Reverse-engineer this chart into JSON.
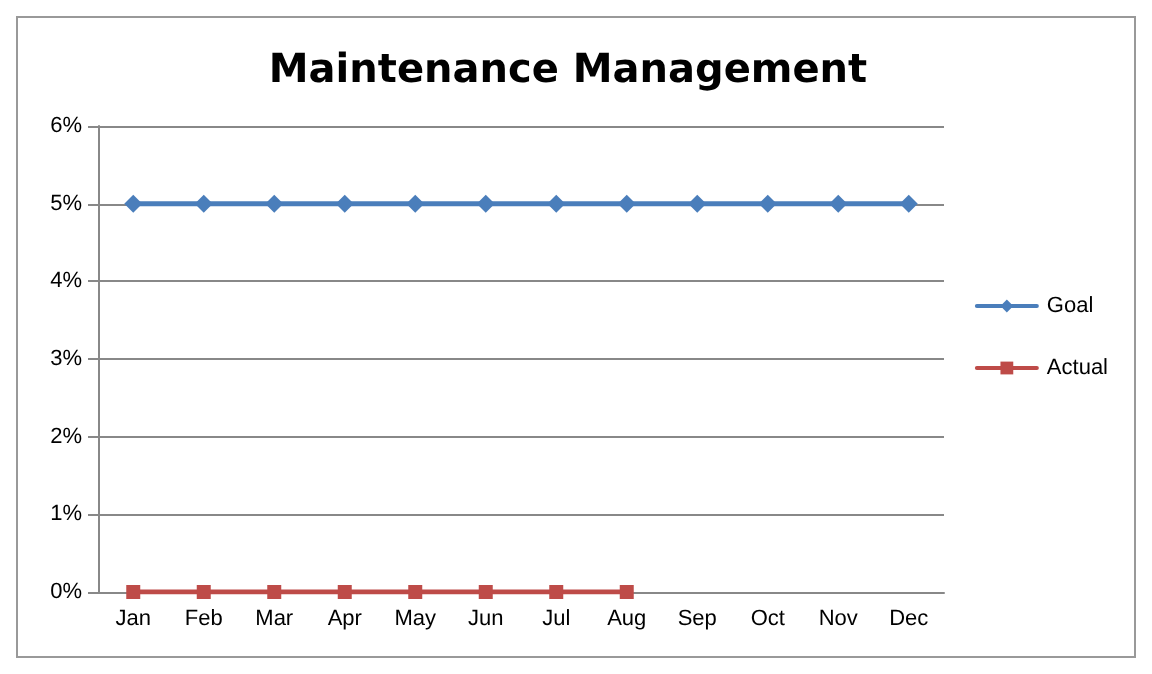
{
  "chart_data": {
    "type": "line",
    "title": "Maintenance Management",
    "categories": [
      "Jan",
      "Feb",
      "Mar",
      "Apr",
      "May",
      "Jun",
      "Jul",
      "Aug",
      "Sep",
      "Oct",
      "Nov",
      "Dec"
    ],
    "series": [
      {
        "name": "Goal",
        "color": "#4a7ebb",
        "marker": "diamond",
        "values": [
          5,
          5,
          5,
          5,
          5,
          5,
          5,
          5,
          5,
          5,
          5,
          5
        ]
      },
      {
        "name": "Actual",
        "color": "#be4b48",
        "marker": "square",
        "values": [
          0,
          0,
          0,
          0,
          0,
          0,
          0,
          0,
          null,
          null,
          null,
          null
        ]
      }
    ],
    "ylim": [
      0,
      6
    ],
    "yticks": [
      {
        "value": 0,
        "label": "0%"
      },
      {
        "value": 1,
        "label": "1%"
      },
      {
        "value": 2,
        "label": "2%"
      },
      {
        "value": 3,
        "label": "3%"
      },
      {
        "value": 4,
        "label": "4%"
      },
      {
        "value": 5,
        "label": "5%"
      },
      {
        "value": 6,
        "label": "6%"
      }
    ],
    "grid": "y",
    "legend": "right",
    "line_style": "solid"
  }
}
